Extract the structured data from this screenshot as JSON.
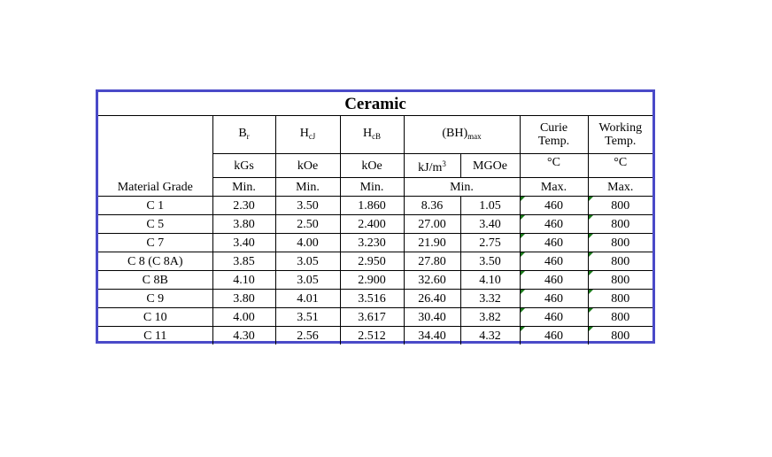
{
  "table": {
    "title": "Ceramic",
    "headers": {
      "br_main": "B",
      "br_sub": "r",
      "hcj_main": "H",
      "hcj_sub": "cJ",
      "hcb_main": "H",
      "hcb_sub": "cB",
      "bh_main": "(BH)",
      "bh_sub": "max",
      "curie_line1": "Curie",
      "curie_line2": "Temp.",
      "working_line1": "Working",
      "working_line2": "Temp."
    },
    "units": {
      "br": "kGs",
      "hcj": "kOe",
      "hcb": "kOe",
      "bh_kj_main": "kJ/m",
      "bh_kj_sup": "3",
      "bh_mgoe": "MGOe",
      "curie": "°C",
      "working": "°C"
    },
    "limits": {
      "grade_label": "Material Grade",
      "br": "Min.",
      "hcj": "Min.",
      "hcb": "Min.",
      "bh": "Min.",
      "curie": "Max.",
      "working": "Max."
    },
    "rows": [
      {
        "grade": "C 1",
        "br": "2.30",
        "hcj": "3.50",
        "hcb": "1.860",
        "kj": "8.36",
        "mgoe": "1.05",
        "curie": "460",
        "working": "800"
      },
      {
        "grade": "C 5",
        "br": "3.80",
        "hcj": "2.50",
        "hcb": "2.400",
        "kj": "27.00",
        "mgoe": "3.40",
        "curie": "460",
        "working": "800"
      },
      {
        "grade": "C 7",
        "br": "3.40",
        "hcj": "4.00",
        "hcb": "3.230",
        "kj": "21.90",
        "mgoe": "2.75",
        "curie": "460",
        "working": "800"
      },
      {
        "grade": "C 8 (C 8A)",
        "br": "3.85",
        "hcj": "3.05",
        "hcb": "2.950",
        "kj": "27.80",
        "mgoe": "3.50",
        "curie": "460",
        "working": "800"
      },
      {
        "grade": "C 8B",
        "br": "4.10",
        "hcj": "3.05",
        "hcb": "2.900",
        "kj": "32.60",
        "mgoe": "4.10",
        "curie": "460",
        "working": "800"
      },
      {
        "grade": "C 9",
        "br": "3.80",
        "hcj": "4.01",
        "hcb": "3.516",
        "kj": "26.40",
        "mgoe": "3.32",
        "curie": "460",
        "working": "800"
      },
      {
        "grade": "C 10",
        "br": "4.00",
        "hcj": "3.51",
        "hcb": "3.617",
        "kj": "30.40",
        "mgoe": "3.82",
        "curie": "460",
        "working": "800"
      },
      {
        "grade": "C 11",
        "br": "4.30",
        "hcj": "2.56",
        "hcb": "2.512",
        "kj": "34.40",
        "mgoe": "4.32",
        "curie": "460",
        "working": "800"
      }
    ]
  }
}
